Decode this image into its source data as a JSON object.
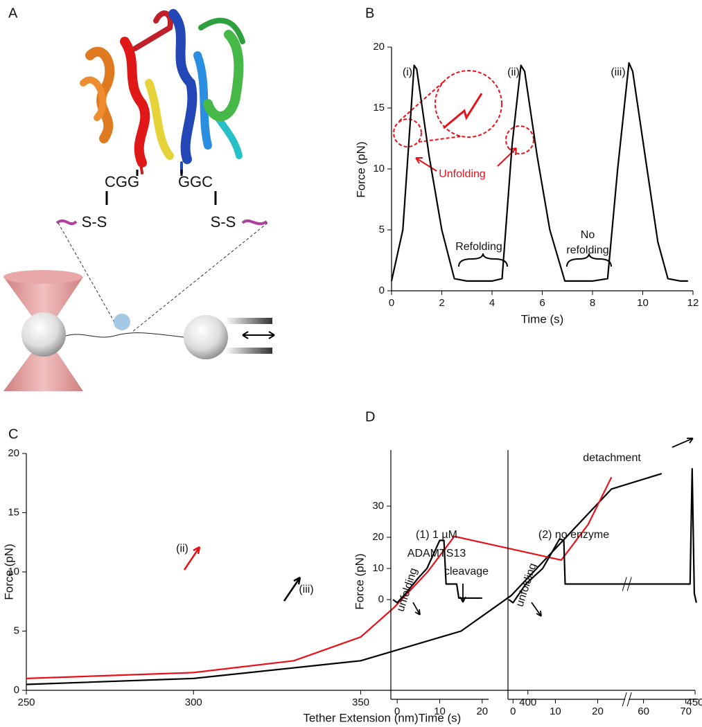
{
  "panel_labels": [
    "A",
    "B",
    "C",
    "D"
  ],
  "diagram": {
    "linkers": [
      "CGG",
      "GGC"
    ],
    "bonds": [
      "S-S",
      "S-S"
    ]
  },
  "chart_data": [
    {
      "type": "line",
      "xlabel": "Time (s)",
      "ylabel": "Force (pN)",
      "xlim": [
        0,
        12
      ],
      "ylim": [
        0,
        20
      ],
      "xticks": [
        0,
        2,
        4,
        6,
        8,
        10,
        12
      ],
      "yticks": [
        0,
        5,
        10,
        15,
        20
      ],
      "series": [
        {
          "color": "#000000",
          "x": [
            0,
            0.45,
            0.9,
            1.0,
            1.5,
            2.0,
            2.5,
            3,
            3.5,
            4,
            4.4,
            4.8,
            5.15,
            5.3,
            5.8,
            6.3,
            6.9,
            7.5,
            8,
            8.6,
            9.0,
            9.45,
            9.6,
            10.1,
            10.6,
            11,
            11.5,
            11.8
          ],
          "values": [
            0.8,
            5,
            18.5,
            18.2,
            11,
            5,
            1,
            0.8,
            0.8,
            0.8,
            1,
            12,
            18.5,
            18,
            11,
            5,
            0.8,
            0.8,
            0.8,
            1,
            10,
            18.7,
            18,
            11,
            4,
            1,
            0.8,
            0.8
          ]
        }
      ],
      "annotations": [
        "(i)",
        "(ii)",
        "(iii)",
        "Unfolding",
        "Refolding",
        "No",
        "refolding"
      ]
    },
    {
      "type": "line",
      "xlabel": "Tether Extension (nm)",
      "ylabel": "Force (pN)",
      "xlim": [
        250,
        450
      ],
      "ylim": [
        0,
        20
      ],
      "xticks": [
        250,
        300,
        350,
        400,
        450
      ],
      "yticks": [
        0,
        5,
        10,
        15,
        20
      ],
      "series": [
        {
          "color": "#000000",
          "x": [
            250,
            300,
            350,
            380,
            395,
            405,
            415,
            425,
            440
          ],
          "values": [
            0.5,
            1,
            2.5,
            5,
            8,
            11,
            14,
            17,
            18.3
          ]
        },
        {
          "color": "#e8111a",
          "x": [
            250,
            300,
            330,
            350,
            360,
            370,
            378,
            410,
            418,
            425
          ],
          "values": [
            1,
            1.5,
            2.5,
            4.5,
            7,
            10,
            13,
            11,
            14,
            18
          ]
        }
      ],
      "annotations": [
        "(ii)",
        "(iii)"
      ]
    },
    {
      "type": "line",
      "xlabel": "Time (s)",
      "ylabel": "Force (pN)",
      "xlim": [
        -1.5,
        21.5
      ],
      "ylim": [
        -32,
        48
      ],
      "xticks": [
        0,
        10,
        20
      ],
      "yticks": [
        0,
        10,
        20,
        30
      ],
      "series": [
        {
          "color": "#000000",
          "x": [
            -1,
            0,
            2,
            5,
            7,
            10,
            11,
            11.5,
            14,
            14.5,
            20
          ],
          "values": [
            0,
            -1,
            2,
            7,
            10,
            19,
            19,
            5,
            5,
            0.5,
            0.5
          ]
        }
      ],
      "annotations": [
        "(1) 1 µM",
        "ADAMTS13",
        "unfolding",
        "cleavage"
      ]
    },
    {
      "type": "line",
      "xlim": [
        -1.2,
        73
      ],
      "xbreak": [
        26.5,
        56.5
      ],
      "ylim": [
        -32,
        48
      ],
      "xticks": [
        0,
        10,
        20,
        60,
        70
      ],
      "series": [
        {
          "color": "#000000",
          "x": [
            -1,
            0,
            3,
            7,
            11,
            12,
            12.3,
            25,
            57,
            71,
            71.5,
            72,
            72.5
          ],
          "values": [
            0,
            -1,
            5,
            10,
            19.5,
            19,
            5,
            5,
            5,
            5,
            42,
            2,
            -1
          ]
        }
      ],
      "annotations": [
        "(2) no enzyme",
        "detachment",
        "unfolding"
      ]
    }
  ]
}
